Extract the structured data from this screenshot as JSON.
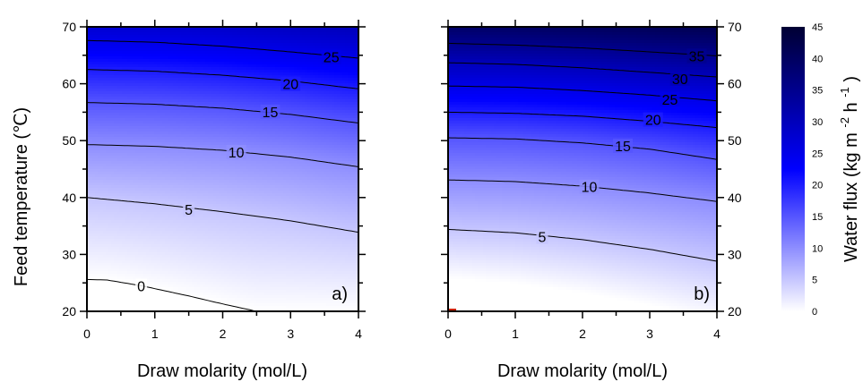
{
  "chart_data": [
    {
      "type": "heatmap",
      "subtype": "filled-contour",
      "panel_label": "a)",
      "xlabel": "Draw molarity (mol/L)",
      "ylabel": "Feed temperature (℃)",
      "xlim": [
        0,
        4
      ],
      "ylim": [
        20,
        70
      ],
      "xticks": [
        0,
        1,
        2,
        3,
        4
      ],
      "yticks": [
        20,
        30,
        40,
        50,
        60,
        70
      ],
      "y_axis_side": "left",
      "contours": [
        {
          "level": 0,
          "label": "0",
          "label_pos": [
            0.8,
            24.5
          ],
          "points": [
            [
              0,
              25.6
            ],
            [
              0.3,
              25.5
            ],
            [
              0.8,
              24.5
            ],
            [
              1.5,
              22.7
            ],
            [
              2.0,
              21.3
            ],
            [
              2.5,
              20.0
            ]
          ]
        },
        {
          "level": 5,
          "label": "5",
          "label_pos": [
            1.5,
            37.9
          ],
          "points": [
            [
              0,
              40.0
            ],
            [
              1,
              38.9
            ],
            [
              2,
              37.5
            ],
            [
              3,
              35.9
            ],
            [
              4,
              33.9
            ]
          ]
        },
        {
          "level": 10,
          "label": "10",
          "label_pos": [
            2.2,
            48.0
          ],
          "points": [
            [
              0,
              49.3
            ],
            [
              1,
              49.0
            ],
            [
              2,
              48.3
            ],
            [
              3,
              47.1
            ],
            [
              4,
              45.4
            ]
          ]
        },
        {
          "level": 15,
          "label": "15",
          "label_pos": [
            2.7,
            55.1
          ],
          "points": [
            [
              0,
              56.7
            ],
            [
              1,
              56.4
            ],
            [
              2,
              55.7
            ],
            [
              3,
              54.6
            ],
            [
              4,
              53.1
            ]
          ]
        },
        {
          "level": 20,
          "label": "20",
          "label_pos": [
            3.0,
            60.0
          ],
          "points": [
            [
              0,
              62.5
            ],
            [
              1,
              62.2
            ],
            [
              2,
              61.5
            ],
            [
              3,
              60.5
            ],
            [
              4,
              59.1
            ]
          ]
        },
        {
          "level": 25,
          "label": "25",
          "label_pos": [
            3.6,
            64.7
          ],
          "points": [
            [
              0,
              67.6
            ],
            [
              1,
              67.3
            ],
            [
              2,
              66.6
            ],
            [
              3,
              65.6
            ],
            [
              4,
              64.5
            ]
          ]
        }
      ]
    },
    {
      "type": "heatmap",
      "subtype": "filled-contour",
      "panel_label": "b)",
      "xlabel": "Draw molarity (mol/L)",
      "ylabel": "",
      "xlim": [
        0,
        4
      ],
      "ylim": [
        20,
        70
      ],
      "xticks": [
        0,
        1,
        2,
        3,
        4
      ],
      "yticks": [
        20,
        30,
        40,
        50,
        60,
        70
      ],
      "y_axis_side": "right",
      "contours": [
        {
          "level": 5,
          "label": "5",
          "label_pos": [
            1.4,
            33.1
          ],
          "points": [
            [
              0,
              34.4
            ],
            [
              1,
              33.8
            ],
            [
              2,
              32.6
            ],
            [
              3,
              30.9
            ],
            [
              4,
              28.8
            ]
          ]
        },
        {
          "level": 10,
          "label": "10",
          "label_pos": [
            2.1,
            41.9
          ],
          "points": [
            [
              0,
              43.1
            ],
            [
              1,
              42.8
            ],
            [
              2,
              42.0
            ],
            [
              3,
              40.8
            ],
            [
              4,
              39.3
            ]
          ]
        },
        {
          "level": 15,
          "label": "15",
          "label_pos": [
            2.6,
            49.1
          ],
          "points": [
            [
              0,
              50.5
            ],
            [
              1,
              50.3
            ],
            [
              2,
              49.6
            ],
            [
              3,
              48.5
            ],
            [
              4,
              46.7
            ]
          ]
        },
        {
          "level": 20,
          "label": "20",
          "label_pos": [
            3.05,
            53.7
          ],
          "points": [
            [
              0,
              55.0
            ],
            [
              1,
              54.8
            ],
            [
              2,
              54.3
            ],
            [
              3,
              53.4
            ],
            [
              4,
              52.3
            ]
          ]
        },
        {
          "level": 25,
          "label": "25",
          "label_pos": [
            3.3,
            57.3
          ],
          "points": [
            [
              0,
              59.6
            ],
            [
              1,
              59.4
            ],
            [
              2,
              58.8
            ],
            [
              3,
              58.0
            ],
            [
              4,
              57.0
            ]
          ]
        },
        {
          "level": 30,
          "label": "30",
          "label_pos": [
            3.45,
            60.9
          ],
          "points": [
            [
              0,
              63.7
            ],
            [
              1,
              63.4
            ],
            [
              2,
              62.8
            ],
            [
              3,
              62.0
            ],
            [
              4,
              61.2
            ]
          ]
        },
        {
          "level": 35,
          "label": "35",
          "label_pos": [
            3.7,
            64.9
          ],
          "points": [
            [
              0,
              67.1
            ],
            [
              1,
              66.8
            ],
            [
              2,
              66.3
            ],
            [
              3,
              65.6
            ],
            [
              4,
              64.9
            ]
          ]
        }
      ]
    }
  ],
  "colorbar": {
    "label_main": "Water flux (kg m",
    "sup_m": "-2",
    "label_h": "h",
    "sup_h": "-1",
    "label_close": ")",
    "min": 0,
    "max": 45,
    "ticks": [
      0,
      5,
      10,
      15,
      20,
      25,
      30,
      35,
      40,
      45
    ],
    "color_low": "#ffffff",
    "color_mid": "#0000ff",
    "color_high": "#000033"
  }
}
